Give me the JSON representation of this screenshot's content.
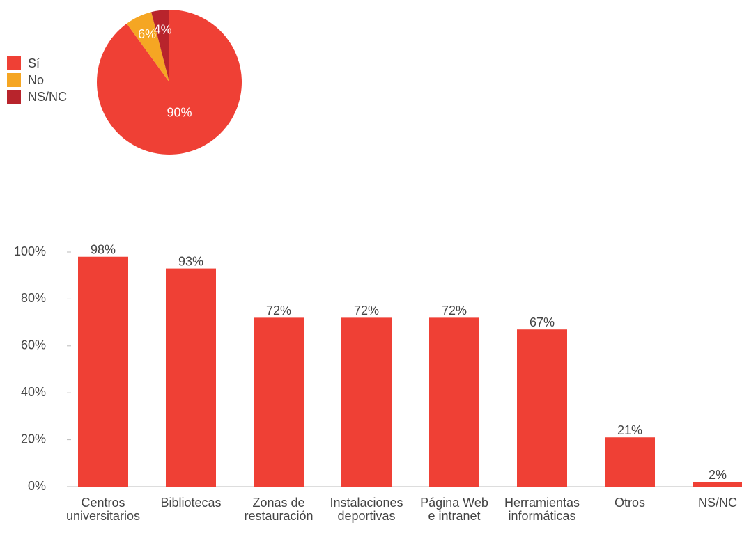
{
  "chart_data": [
    {
      "type": "pie",
      "categories": [
        "Sí",
        "No",
        "NS/NC"
      ],
      "values": [
        90,
        6,
        4
      ],
      "value_labels": [
        "90%",
        "6%",
        "4%"
      ],
      "colors": [
        "#ef4035",
        "#f5a623",
        "#b8242c"
      ],
      "legend": "left"
    },
    {
      "type": "bar",
      "categories": [
        "Centros\nuniversitarios",
        "Bibliotecas",
        "Zonas de\nrestauración",
        "Instalaciones\ndeportivas",
        "Página Web\ne intranet",
        "Herramientas\ninformáticas",
        "Otros",
        "NS/NC"
      ],
      "values": [
        98,
        93,
        72,
        72,
        72,
        67,
        21,
        2
      ],
      "value_labels": [
        "98%",
        "93%",
        "72%",
        "72%",
        "72%",
        "67%",
        "21%",
        "2%"
      ],
      "color": "#ef4035",
      "ylim": [
        0,
        100
      ],
      "yticks": [
        {
          "value": 0,
          "label": "0%"
        },
        {
          "value": 20,
          "label": "20%"
        },
        {
          "value": 40,
          "label": "40%"
        },
        {
          "value": 60,
          "label": "60%"
        },
        {
          "value": 80,
          "label": "80%"
        },
        {
          "value": 100,
          "label": "100%"
        }
      ]
    }
  ]
}
